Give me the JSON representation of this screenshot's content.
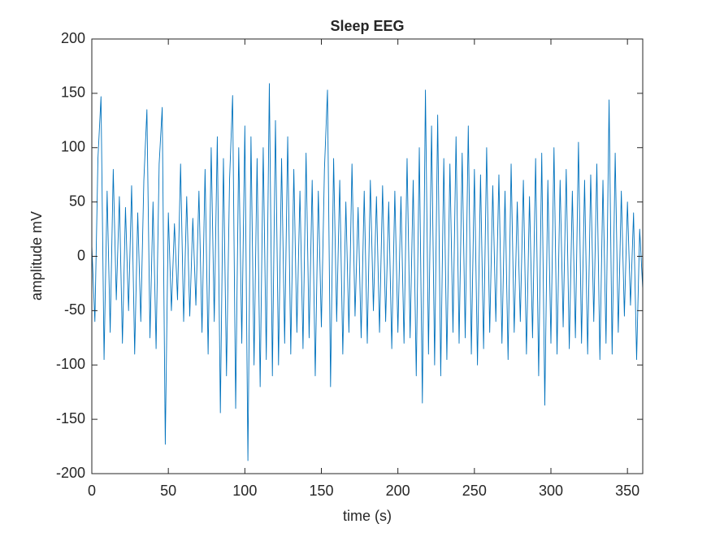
{
  "chart_data": {
    "type": "line",
    "title": "Sleep EEG",
    "x_label": "time (s)",
    "y_label": "amplitude mV",
    "color": "#0072bd",
    "x": [
      0,
      2,
      4,
      6,
      8,
      10,
      12,
      14,
      16,
      18,
      20,
      22,
      24,
      26,
      28,
      30,
      32,
      34,
      36,
      38,
      40,
      42,
      44,
      46,
      48,
      50,
      52,
      54,
      56,
      58,
      60,
      62,
      64,
      66,
      68,
      70,
      72,
      74,
      76,
      78,
      80,
      82,
      84,
      86,
      88,
      90,
      92,
      94,
      96,
      98,
      100,
      102,
      104,
      106,
      108,
      110,
      112,
      114,
      116,
      118,
      120,
      122,
      124,
      126,
      128,
      130,
      132,
      134,
      136,
      138,
      140,
      142,
      144,
      146,
      148,
      150,
      152,
      154,
      156,
      158,
      160,
      162,
      164,
      166,
      168,
      170,
      172,
      174,
      176,
      178,
      180,
      182,
      184,
      186,
      188,
      190,
      192,
      194,
      196,
      198,
      200,
      202,
      204,
      206,
      208,
      210,
      212,
      214,
      216,
      218,
      220,
      222,
      224,
      226,
      228,
      230,
      232,
      234,
      236,
      238,
      240,
      242,
      244,
      246,
      248,
      250,
      252,
      254,
      256,
      258,
      260,
      262,
      264,
      266,
      268,
      270,
      272,
      274,
      276,
      278,
      280,
      282,
      284,
      286,
      288,
      290,
      292,
      294,
      296,
      298,
      300,
      302,
      304,
      306,
      308,
      310,
      312,
      314,
      316,
      318,
      320,
      322,
      324,
      326,
      328,
      330,
      332,
      334,
      336,
      338,
      340,
      342,
      344,
      346,
      348,
      350,
      352,
      354,
      356,
      358,
      360
    ],
    "values": [
      10,
      -60,
      90,
      147,
      -95,
      60,
      -70,
      80,
      -40,
      55,
      -80,
      45,
      -50,
      65,
      -90,
      40,
      -60,
      70,
      135,
      -75,
      50,
      -85,
      85,
      137,
      -173,
      40,
      -50,
      30,
      -40,
      85,
      -60,
      55,
      -55,
      35,
      -45,
      60,
      -70,
      80,
      -90,
      100,
      -60,
      110,
      -144,
      90,
      -110,
      70,
      148,
      -140,
      100,
      -80,
      120,
      -188,
      110,
      -100,
      90,
      -120,
      100,
      -95,
      159,
      -110,
      125,
      -100,
      90,
      -80,
      110,
      -90,
      80,
      -70,
      60,
      -85,
      95,
      -75,
      70,
      -110,
      60,
      -65,
      80,
      153,
      -120,
      90,
      -60,
      70,
      -90,
      50,
      -70,
      85,
      -55,
      45,
      -75,
      60,
      -80,
      70,
      -50,
      55,
      -70,
      65,
      -60,
      50,
      -85,
      60,
      -70,
      55,
      -80,
      90,
      -75,
      70,
      -110,
      100,
      -135,
      153,
      -90,
      120,
      -100,
      130,
      -110,
      90,
      -95,
      85,
      -70,
      110,
      -80,
      95,
      -75,
      120,
      -90,
      80,
      -100,
      75,
      -85,
      100,
      -70,
      65,
      -60,
      75,
      -80,
      60,
      -95,
      85,
      -70,
      50,
      -60,
      70,
      -90,
      55,
      -75,
      90,
      -110,
      95,
      -137,
      70,
      -80,
      100,
      -90,
      70,
      -65,
      80,
      -85,
      60,
      -75,
      105,
      -80,
      70,
      -90,
      75,
      -60,
      85,
      -95,
      70,
      -80,
      144,
      -90,
      95,
      -70,
      60,
      -55,
      50,
      -45,
      40,
      -95,
      25,
      -30
    ],
    "xlim": [
      0,
      360
    ],
    "xticks": [
      0,
      50,
      100,
      150,
      200,
      250,
      300,
      350
    ],
    "ylim": [
      -200,
      200
    ],
    "yticks": [
      -200,
      -150,
      -100,
      -50,
      0,
      50,
      100,
      150,
      200
    ]
  }
}
